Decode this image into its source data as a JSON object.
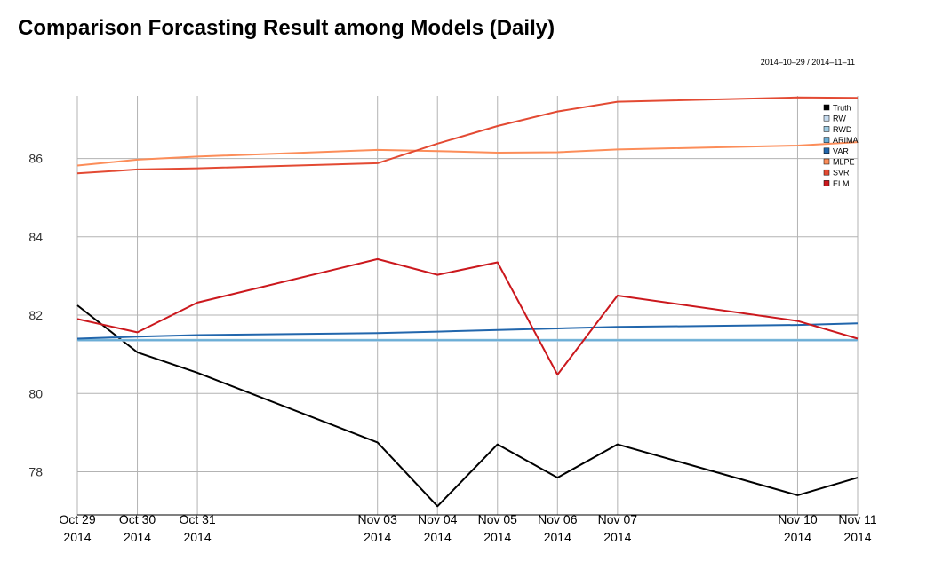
{
  "title": "Comparison Forcasting Result among Models (Daily)",
  "subtitle": "2014–10–29 / 2014–11–11",
  "chart_data": {
    "type": "line",
    "title": "Comparison Forcasting Result among Models (Daily)",
    "subtitle": "2014–10–29 / 2014–11–11",
    "xlabel": "",
    "ylabel": "",
    "x": [
      "2014-10-29",
      "2014-10-30",
      "2014-10-31",
      "2014-11-03",
      "2014-11-04",
      "2014-11-05",
      "2014-11-06",
      "2014-11-07",
      "2014-11-10",
      "2014-11-11"
    ],
    "x_tick_labels": [
      [
        "Oct 29",
        "2014"
      ],
      [
        "Oct 30",
        "2014"
      ],
      [
        "Oct 31",
        "2014"
      ],
      [
        "Nov 03",
        "2014"
      ],
      [
        "Nov 04",
        "2014"
      ],
      [
        "Nov 05",
        "2014"
      ],
      [
        "Nov 06",
        "2014"
      ],
      [
        "Nov 07",
        "2014"
      ],
      [
        "Nov 10",
        "2014"
      ],
      [
        "Nov 11",
        "2014"
      ]
    ],
    "y_ticks": [
      78,
      80,
      82,
      84,
      86
    ],
    "ylim": [
      76.9,
      87.6
    ],
    "grid": true,
    "legend_position": "top-right",
    "series": [
      {
        "name": "Truth",
        "color": "#000000",
        "values": [
          82.25,
          81.05,
          80.53,
          78.75,
          77.12,
          78.7,
          77.85,
          78.7,
          77.4,
          77.85
        ]
      },
      {
        "name": "RW",
        "color": "#c6dbef",
        "values": [
          81.35,
          81.35,
          81.35,
          81.35,
          81.35,
          81.35,
          81.35,
          81.35,
          81.35,
          81.35
        ]
      },
      {
        "name": "RWD",
        "color": "#9ecae1",
        "values": [
          81.37,
          81.37,
          81.37,
          81.37,
          81.37,
          81.37,
          81.37,
          81.37,
          81.37,
          81.37
        ]
      },
      {
        "name": "ARIMA",
        "color": "#6baed6",
        "values": [
          81.36,
          81.36,
          81.36,
          81.36,
          81.36,
          81.36,
          81.36,
          81.36,
          81.36,
          81.36
        ]
      },
      {
        "name": "VAR",
        "color": "#2166ac",
        "values": [
          81.4,
          81.45,
          81.49,
          81.54,
          81.58,
          81.62,
          81.66,
          81.7,
          81.75,
          81.79
        ]
      },
      {
        "name": "MLPE",
        "color": "#fc8d59",
        "values": [
          85.82,
          85.97,
          86.05,
          86.22,
          86.19,
          86.15,
          86.16,
          86.23,
          86.33,
          86.42
        ]
      },
      {
        "name": "SVR",
        "color": "#e34a33",
        "values": [
          85.62,
          85.72,
          85.75,
          85.88,
          86.38,
          86.83,
          87.2,
          87.45,
          87.56,
          87.55
        ]
      },
      {
        "name": "ELM",
        "color": "#cb181d",
        "values": [
          81.9,
          81.56,
          82.32,
          83.43,
          83.03,
          83.35,
          80.48,
          82.5,
          81.85,
          81.4
        ]
      }
    ]
  }
}
